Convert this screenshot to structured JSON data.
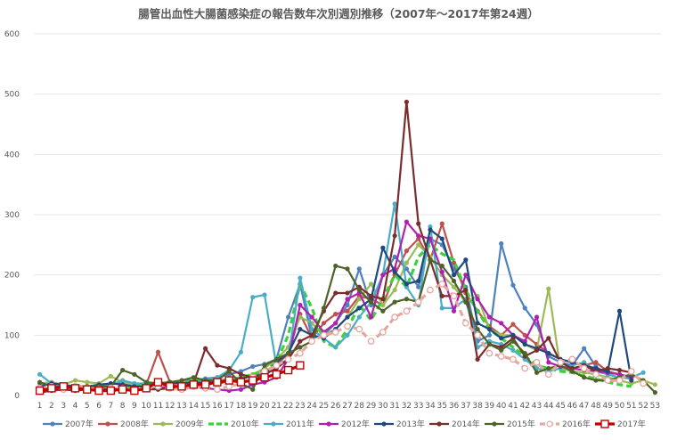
{
  "chart_data": {
    "type": "line",
    "title": "腸管出血性大腸菌感染症の報告数年次別週別推移（2007年～2017年第24週）",
    "xlabel": "",
    "ylabel": "",
    "ylim": [
      0,
      600
    ],
    "yticks": [
      0,
      100,
      200,
      300,
      400,
      500,
      600
    ],
    "grid": true,
    "legend_position": "bottom",
    "x": [
      1,
      2,
      3,
      4,
      5,
      6,
      7,
      8,
      9,
      10,
      11,
      12,
      13,
      14,
      15,
      16,
      17,
      18,
      19,
      20,
      21,
      22,
      23,
      24,
      25,
      26,
      27,
      28,
      29,
      30,
      31,
      32,
      33,
      34,
      35,
      36,
      37,
      38,
      39,
      40,
      41,
      42,
      43,
      44,
      45,
      46,
      47,
      48,
      49,
      50,
      51,
      52,
      53
    ],
    "x_labels": [
      "1",
      "2",
      "3",
      "4",
      "5",
      "6",
      "7",
      "8",
      "9",
      "10",
      "11",
      "12",
      "13",
      "14",
      "15",
      "16",
      "17",
      "18",
      "19",
      "20",
      "21",
      "22",
      "23",
      "24",
      "25",
      "26",
      "27",
      "28",
      "29",
      "30",
      "31",
      "32",
      "33",
      "34",
      "35",
      "36",
      "37",
      "38",
      "39",
      "40",
      "41",
      "42",
      "43",
      "44",
      "45",
      "46",
      "47",
      "48",
      "49",
      "50",
      "51",
      "52",
      "53"
    ],
    "series": [
      {
        "name": "2007年",
        "color": "#4f81bd",
        "style": "solid",
        "marker": "filled",
        "values": [
          20,
          18,
          15,
          12,
          12,
          16,
          18,
          22,
          15,
          18,
          20,
          22,
          25,
          25,
          28,
          30,
          35,
          40,
          48,
          52,
          60,
          130,
          185,
          95,
          100,
          120,
          150,
          210,
          150,
          200,
          230,
          210,
          180,
          260,
          250,
          210,
          180,
          90,
          100,
          252,
          183,
          145,
          118,
          65,
          55,
          50,
          78,
          48,
          35,
          30,
          28,
          null,
          null
        ]
      },
      {
        "name": "2008年",
        "color": "#c0504d",
        "style": "solid",
        "marker": "filled",
        "values": [
          8,
          10,
          12,
          10,
          10,
          8,
          10,
          12,
          14,
          18,
          72,
          22,
          20,
          22,
          25,
          18,
          25,
          30,
          32,
          40,
          50,
          70,
          135,
          95,
          120,
          135,
          140,
          165,
          160,
          150,
          200,
          240,
          260,
          225,
          285,
          220,
          170,
          140,
          115,
          100,
          118,
          100,
          85,
          70,
          60,
          55,
          50,
          55,
          40,
          35,
          30,
          null,
          null
        ]
      },
      {
        "name": "2009年",
        "color": "#9bbb59",
        "style": "solid",
        "marker": "filled",
        "values": [
          20,
          22,
          18,
          25,
          22,
          20,
          32,
          22,
          18,
          20,
          18,
          20,
          22,
          25,
          20,
          25,
          28,
          30,
          35,
          45,
          60,
          80,
          130,
          120,
          100,
          110,
          130,
          160,
          185,
          150,
          175,
          220,
          250,
          230,
          200,
          180,
          155,
          165,
          110,
          100,
          100,
          85,
          75,
          177,
          45,
          40,
          38,
          35,
          30,
          25,
          20,
          25,
          18
        ]
      },
      {
        "name": "2010年",
        "color": "#39d339",
        "style": "dash",
        "marker": "none",
        "values": [
          18,
          15,
          15,
          14,
          12,
          14,
          12,
          15,
          15,
          18,
          20,
          22,
          20,
          25,
          22,
          22,
          25,
          30,
          35,
          40,
          55,
          100,
          185,
          145,
          90,
          80,
          110,
          150,
          125,
          160,
          200,
          180,
          230,
          250,
          235,
          225,
          175,
          140,
          110,
          95,
          80,
          65,
          50,
          45,
          40,
          38,
          32,
          28,
          22,
          18,
          15,
          null,
          null
        ]
      },
      {
        "name": "2011年",
        "color": "#4bacc6",
        "style": "solid",
        "marker": "filled",
        "values": [
          35,
          20,
          15,
          12,
          12,
          15,
          18,
          25,
          20,
          20,
          22,
          18,
          20,
          22,
          25,
          30,
          42,
          72,
          163,
          167,
          50,
          60,
          195,
          110,
          95,
          80,
          100,
          130,
          155,
          200,
          318,
          180,
          150,
          280,
          145,
          145,
          160,
          80,
          90,
          85,
          75,
          60,
          45,
          40,
          45,
          50,
          55,
          40,
          35,
          30,
          30,
          38,
          null
        ]
      },
      {
        "name": "2012年",
        "color": "#b020b0",
        "style": "solid",
        "marker": "filled",
        "values": [
          10,
          8,
          10,
          10,
          10,
          10,
          8,
          10,
          8,
          10,
          12,
          15,
          12,
          14,
          12,
          10,
          8,
          10,
          18,
          22,
          30,
          60,
          150,
          130,
          105,
          120,
          160,
          170,
          130,
          200,
          210,
          288,
          265,
          260,
          205,
          140,
          200,
          160,
          130,
          120,
          100,
          90,
          130,
          55,
          48,
          45,
          42,
          40,
          38,
          35,
          30,
          null,
          null
        ]
      },
      {
        "name": "2013年",
        "color": "#1f497d",
        "style": "solid",
        "marker": "filled",
        "values": [
          15,
          20,
          18,
          15,
          15,
          18,
          20,
          18,
          15,
          15,
          20,
          22,
          20,
          22,
          20,
          25,
          22,
          28,
          32,
          35,
          55,
          70,
          110,
          100,
          95,
          110,
          130,
          145,
          160,
          245,
          205,
          185,
          190,
          275,
          260,
          200,
          225,
          120,
          110,
          95,
          100,
          85,
          78,
          70,
          60,
          55,
          50,
          45,
          40,
          140,
          25,
          null,
          null
        ]
      },
      {
        "name": "2014年",
        "color": "#7b2c2c",
        "style": "solid",
        "marker": "filled",
        "values": [
          5,
          8,
          10,
          8,
          10,
          12,
          10,
          12,
          8,
          10,
          10,
          12,
          15,
          20,
          78,
          50,
          45,
          35,
          30,
          35,
          45,
          60,
          90,
          100,
          140,
          170,
          170,
          180,
          165,
          160,
          265,
          487,
          285,
          225,
          165,
          165,
          175,
          60,
          85,
          80,
          95,
          65,
          75,
          95,
          55,
          45,
          50,
          40,
          45,
          42,
          38,
          null,
          null
        ]
      },
      {
        "name": "2015年",
        "color": "#4f6228",
        "style": "solid",
        "marker": "filled",
        "values": [
          22,
          15,
          12,
          15,
          15,
          15,
          15,
          42,
          35,
          22,
          20,
          22,
          25,
          30,
          25,
          25,
          40,
          20,
          10,
          50,
          60,
          70,
          80,
          90,
          145,
          215,
          210,
          175,
          155,
          140,
          155,
          160,
          155,
          225,
          215,
          190,
          155,
          110,
          85,
          75,
          90,
          70,
          38,
          45,
          50,
          40,
          30,
          25,
          25,
          30,
          35,
          25,
          5
        ]
      },
      {
        "name": "2016年",
        "color": "#e6a7a0",
        "style": "dash",
        "marker": "hollow",
        "values": [
          12,
          15,
          10,
          15,
          12,
          10,
          12,
          12,
          8,
          12,
          15,
          12,
          10,
          15,
          12,
          10,
          15,
          20,
          30,
          40,
          50,
          60,
          70,
          90,
          100,
          105,
          115,
          110,
          90,
          105,
          130,
          140,
          155,
          175,
          185,
          165,
          120,
          100,
          70,
          65,
          60,
          45,
          55,
          35,
          55,
          60,
          45,
          35,
          25,
          25,
          40,
          20,
          null
        ]
      },
      {
        "name": "2017年",
        "color": "#c00000",
        "style": "solid",
        "marker": "square",
        "width": 3.2,
        "values": [
          8,
          12,
          15,
          12,
          10,
          8,
          8,
          10,
          8,
          12,
          22,
          15,
          15,
          18,
          18,
          22,
          25,
          22,
          25,
          30,
          35,
          42,
          50,
          null,
          null,
          null,
          null,
          null,
          null,
          null,
          null,
          null,
          null,
          null,
          null,
          null,
          null,
          null,
          null,
          null,
          null,
          null,
          null,
          null,
          null,
          null,
          null,
          null,
          null,
          null,
          null,
          null,
          null
        ]
      }
    ]
  }
}
